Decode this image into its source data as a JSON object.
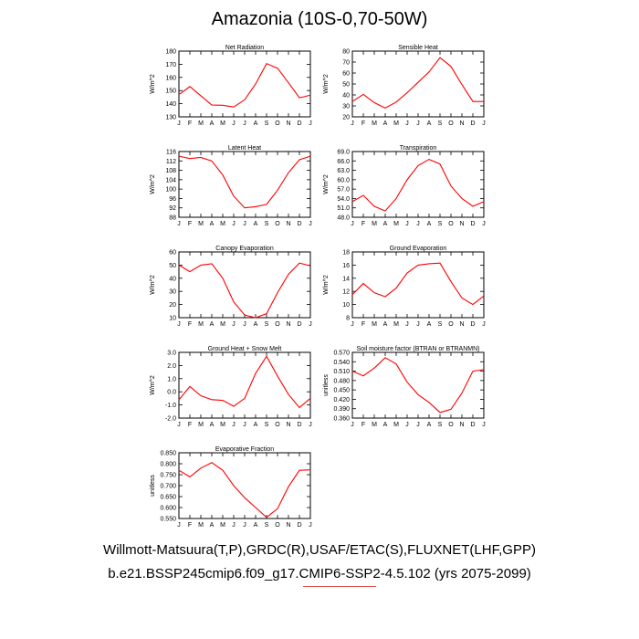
{
  "title": "Amazonia (10S-0,70-50W)",
  "footer": {
    "line1": "Willmott-Matsuura(T,P),GRDC(R),USAF/ETAC(S),FLUXNET(LHF,GPP)",
    "line2": "b.e21.BSSP245cmip6.f09_g17.CMIP6-SSP2-4.5.102 (yrs 2075-2099)"
  },
  "colors": {
    "series": "#ff0000",
    "axis": "#000000"
  },
  "months": [
    "J",
    "F",
    "M",
    "A",
    "M",
    "J",
    "J",
    "A",
    "S",
    "O",
    "N",
    "D",
    "J"
  ],
  "chart_data": [
    {
      "type": "line",
      "title": "Net Radiation",
      "ylabel": "W/m^2",
      "ylim": [
        130,
        180
      ],
      "yticks": [
        "130",
        "140",
        "150",
        "160",
        "170",
        "180"
      ],
      "values": [
        147,
        153,
        146,
        139,
        138.8,
        137.5,
        143,
        155,
        170.5,
        167,
        156,
        144.5,
        146.5
      ]
    },
    {
      "type": "line",
      "title": "Sensible Heat",
      "ylabel": "W/m^2",
      "ylim": [
        20,
        80
      ],
      "yticks": [
        "20",
        "30",
        "40",
        "50",
        "60",
        "70",
        "80"
      ],
      "values": [
        34,
        40.5,
        33,
        28,
        33.5,
        42,
        51.5,
        61,
        74,
        66,
        49.5,
        34,
        34
      ]
    },
    {
      "type": "line",
      "title": "Latent Heat",
      "ylabel": "W/m^2",
      "ylim": [
        88,
        116
      ],
      "yticks": [
        "88",
        "92",
        "96",
        "100",
        "104",
        "108",
        "112",
        "116"
      ],
      "values": [
        114,
        113,
        113.5,
        112,
        106,
        97,
        92,
        92.5,
        93.5,
        99.5,
        107,
        112.5,
        114
      ]
    },
    {
      "type": "line",
      "title": "Transpiration",
      "ylabel": "W/m^2",
      "ylim": [
        48,
        69
      ],
      "yticks": [
        "48.0",
        "51.0",
        "54.0",
        "57.0",
        "60.0",
        "63.0",
        "66.0",
        "69.0"
      ],
      "values": [
        53,
        55,
        51.5,
        50,
        54,
        60,
        64.5,
        66.5,
        65,
        58,
        54,
        51.5,
        53
      ]
    },
    {
      "type": "line",
      "title": "Canopy Evaporation",
      "ylabel": "W/m^2",
      "ylim": [
        10,
        60
      ],
      "yticks": [
        "10",
        "20",
        "30",
        "40",
        "50",
        "60"
      ],
      "values": [
        50,
        45,
        50,
        51,
        40,
        22,
        12,
        10,
        13,
        29,
        43,
        51.5,
        49.5
      ]
    },
    {
      "type": "line",
      "title": "Ground Evaporation",
      "ylabel": "W/m^2",
      "ylim": [
        8,
        18
      ],
      "yticks": [
        "8",
        "10",
        "12",
        "14",
        "16",
        "18"
      ],
      "values": [
        11.5,
        13.2,
        11.8,
        11.2,
        12.5,
        14.8,
        16,
        16.2,
        16.3,
        13.5,
        11,
        10,
        11.3
      ]
    },
    {
      "type": "line",
      "title": "Ground Heat + Snow Melt",
      "ylabel": "W/m^2",
      "ylim": [
        -2,
        3
      ],
      "yticks": [
        "-2.0",
        "-1.0",
        "0.0",
        "1.0",
        "2.0",
        "3.0"
      ],
      "values": [
        -0.6,
        0.4,
        -0.3,
        -0.6,
        -0.65,
        -1.1,
        -0.5,
        1.4,
        2.7,
        1.2,
        -0.2,
        -1.2,
        -0.5
      ]
    },
    {
      "type": "line",
      "title": "Soil moisture factor (BTRAN or BTRANMN)",
      "ylabel": "unitless",
      "ylim": [
        0.36,
        0.57
      ],
      "yticks": [
        "0.360",
        "0.390",
        "0.420",
        "0.450",
        "0.480",
        "0.510",
        "0.540",
        "0.570"
      ],
      "values": [
        0.51,
        0.495,
        0.52,
        0.553,
        0.533,
        0.475,
        0.435,
        0.41,
        0.378,
        0.388,
        0.44,
        0.51,
        0.515
      ]
    },
    {
      "type": "line",
      "title": "Evaporative Fraction",
      "ylabel": "unitless",
      "ylim": [
        0.55,
        0.85
      ],
      "yticks": [
        "0.550",
        "0.600",
        "0.650",
        "0.700",
        "0.750",
        "0.800",
        "0.850"
      ],
      "values": [
        0.77,
        0.74,
        0.78,
        0.805,
        0.77,
        0.7,
        0.645,
        0.6,
        0.555,
        0.595,
        0.695,
        0.77,
        0.772
      ]
    }
  ]
}
